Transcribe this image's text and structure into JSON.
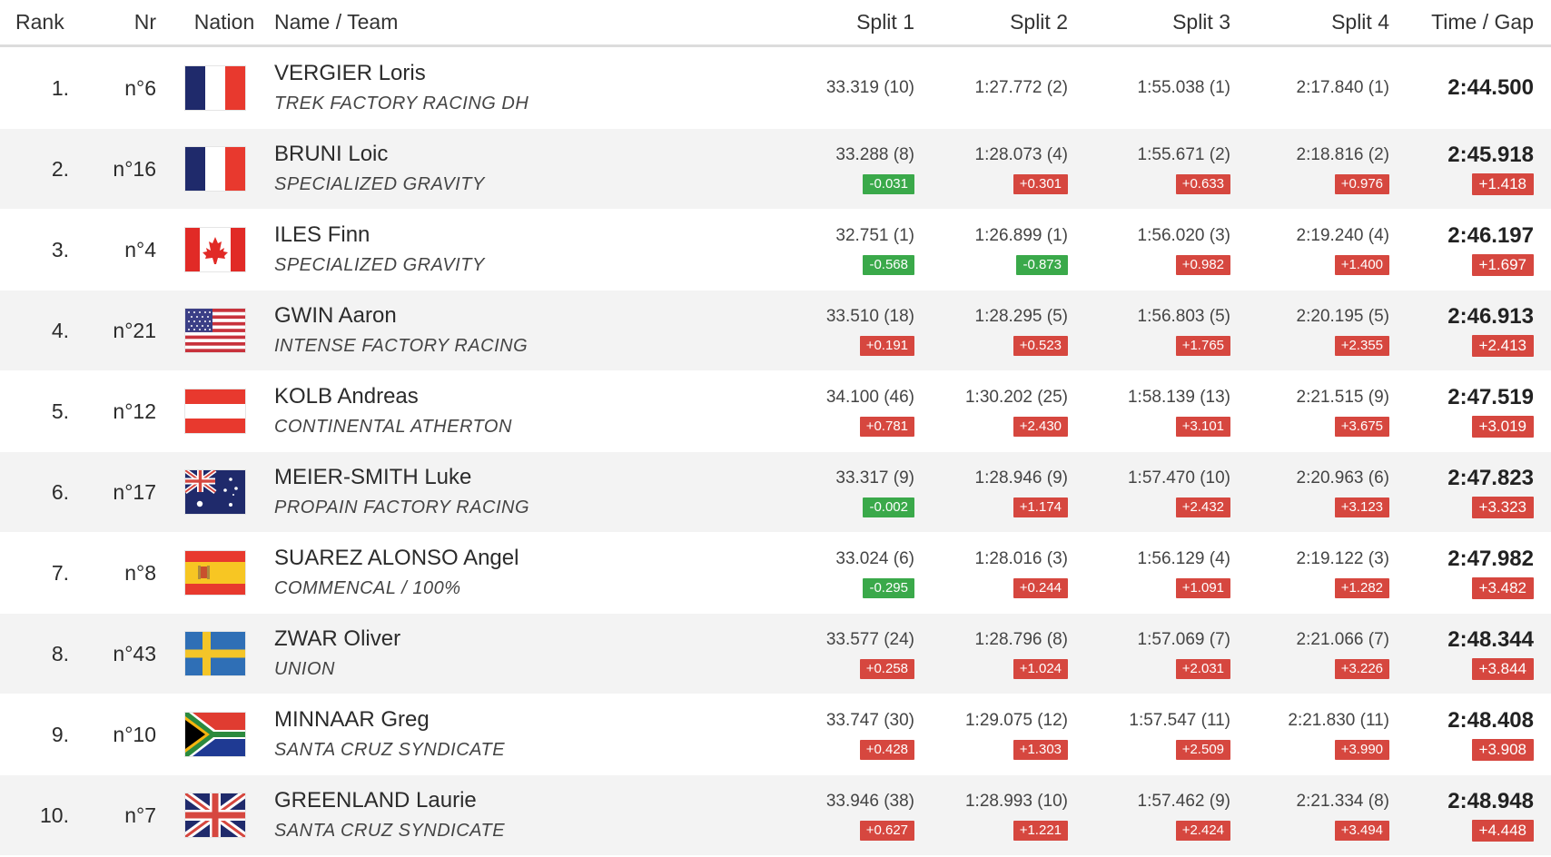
{
  "header": {
    "rank": "Rank",
    "nr": "Nr",
    "nation": "Nation",
    "name_team": "Name / Team",
    "split1": "Split 1",
    "split2": "Split 2",
    "split3": "Split 3",
    "split4": "Split 4",
    "time_gap": "Time / Gap"
  },
  "colors": {
    "gap_positive": "#d6473f",
    "gap_negative": "#3aa94a"
  },
  "rows": [
    {
      "rank": "1.",
      "nr": "n°6",
      "nation": "france-flag-icon",
      "name": "VERGIER Loris",
      "team": "TREK FACTORY RACING DH",
      "s1": "33.319 (10)",
      "s1g": "",
      "s2": "1:27.772 (2)",
      "s2g": "",
      "s3": "1:55.038 (1)",
      "s3g": "",
      "s4": "2:17.840 (1)",
      "s4g": "",
      "time": "2:44.500",
      "gap": ""
    },
    {
      "rank": "2.",
      "nr": "n°16",
      "nation": "france-flag-icon",
      "name": "BRUNI Loic",
      "team": "SPECIALIZED GRAVITY",
      "s1": "33.288 (8)",
      "s1g": "-0.031",
      "s2": "1:28.073 (4)",
      "s2g": "+0.301",
      "s3": "1:55.671 (2)",
      "s3g": "+0.633",
      "s4": "2:18.816 (2)",
      "s4g": "+0.976",
      "time": "2:45.918",
      "gap": "+1.418"
    },
    {
      "rank": "3.",
      "nr": "n°4",
      "nation": "canada-flag-icon",
      "name": "ILES Finn",
      "team": "SPECIALIZED GRAVITY",
      "s1": "32.751 (1)",
      "s1g": "-0.568",
      "s2": "1:26.899 (1)",
      "s2g": "-0.873",
      "s3": "1:56.020 (3)",
      "s3g": "+0.982",
      "s4": "2:19.240 (4)",
      "s4g": "+1.400",
      "time": "2:46.197",
      "gap": "+1.697"
    },
    {
      "rank": "4.",
      "nr": "n°21",
      "nation": "usa-flag-icon",
      "name": "GWIN Aaron",
      "team": "INTENSE FACTORY RACING",
      "s1": "33.510 (18)",
      "s1g": "+0.191",
      "s2": "1:28.295 (5)",
      "s2g": "+0.523",
      "s3": "1:56.803 (5)",
      "s3g": "+1.765",
      "s4": "2:20.195 (5)",
      "s4g": "+2.355",
      "time": "2:46.913",
      "gap": "+2.413"
    },
    {
      "rank": "5.",
      "nr": "n°12",
      "nation": "austria-flag-icon",
      "name": "KOLB Andreas",
      "team": "CONTINENTAL ATHERTON",
      "s1": "34.100 (46)",
      "s1g": "+0.781",
      "s2": "1:30.202 (25)",
      "s2g": "+2.430",
      "s3": "1:58.139 (13)",
      "s3g": "+3.101",
      "s4": "2:21.515 (9)",
      "s4g": "+3.675",
      "time": "2:47.519",
      "gap": "+3.019"
    },
    {
      "rank": "6.",
      "nr": "n°17",
      "nation": "australia-flag-icon",
      "name": "MEIER-SMITH Luke",
      "team": "PROPAIN FACTORY RACING",
      "s1": "33.317 (9)",
      "s1g": "-0.002",
      "s2": "1:28.946 (9)",
      "s2g": "+1.174",
      "s3": "1:57.470 (10)",
      "s3g": "+2.432",
      "s4": "2:20.963 (6)",
      "s4g": "+3.123",
      "time": "2:47.823",
      "gap": "+3.323"
    },
    {
      "rank": "7.",
      "nr": "n°8",
      "nation": "spain-flag-icon",
      "name": "SUAREZ ALONSO Angel",
      "team": "COMMENCAL / 100%",
      "s1": "33.024 (6)",
      "s1g": "-0.295",
      "s2": "1:28.016 (3)",
      "s2g": "+0.244",
      "s3": "1:56.129 (4)",
      "s3g": "+1.091",
      "s4": "2:19.122 (3)",
      "s4g": "+1.282",
      "time": "2:47.982",
      "gap": "+3.482"
    },
    {
      "rank": "8.",
      "nr": "n°43",
      "nation": "sweden-flag-icon",
      "name": "ZWAR Oliver",
      "team": "UNION",
      "s1": "33.577 (24)",
      "s1g": "+0.258",
      "s2": "1:28.796 (8)",
      "s2g": "+1.024",
      "s3": "1:57.069 (7)",
      "s3g": "+2.031",
      "s4": "2:21.066 (7)",
      "s4g": "+3.226",
      "time": "2:48.344",
      "gap": "+3.844"
    },
    {
      "rank": "9.",
      "nr": "n°10",
      "nation": "south-africa-flag-icon",
      "name": "MINNAAR Greg",
      "team": "SANTA CRUZ SYNDICATE",
      "s1": "33.747 (30)",
      "s1g": "+0.428",
      "s2": "1:29.075 (12)",
      "s2g": "+1.303",
      "s3": "1:57.547 (11)",
      "s3g": "+2.509",
      "s4": "2:21.830 (11)",
      "s4g": "+3.990",
      "time": "2:48.408",
      "gap": "+3.908"
    },
    {
      "rank": "10.",
      "nr": "n°7",
      "nation": "uk-flag-icon",
      "name": "GREENLAND Laurie",
      "team": "SANTA CRUZ SYNDICATE",
      "s1": "33.946 (38)",
      "s1g": "+0.627",
      "s2": "1:28.993 (10)",
      "s2g": "+1.221",
      "s3": "1:57.462 (9)",
      "s3g": "+2.424",
      "s4": "2:21.334 (8)",
      "s4g": "+3.494",
      "time": "2:48.948",
      "gap": "+4.448"
    }
  ]
}
